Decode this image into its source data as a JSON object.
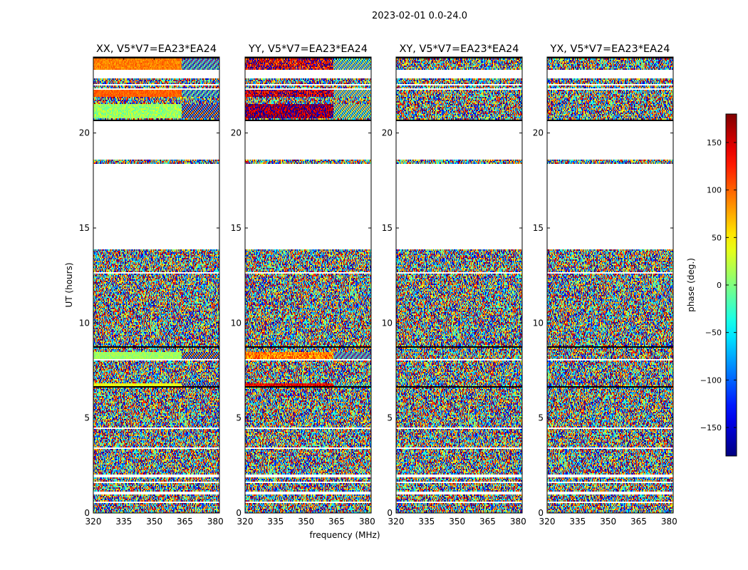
{
  "chart_data": {
    "type": "heatmap",
    "title": "2023-02-01 0.0-24.0",
    "xlabel": "frequency (MHz)",
    "ylabel": "UT (hours)",
    "xlim": [
      320,
      382
    ],
    "ylim": [
      0,
      24
    ],
    "x_ticks": [
      320,
      335,
      350,
      365,
      380
    ],
    "y_ticks": [
      0,
      5,
      10,
      15,
      20
    ],
    "colorbar": {
      "label": "phase (deg.)",
      "range": [
        -180,
        180
      ],
      "ticks": [
        -150,
        -100,
        -50,
        0,
        50,
        100,
        150
      ],
      "tick_labels": [
        "−150",
        "−100",
        "−50",
        "0",
        "50",
        "100",
        "150"
      ],
      "colormap": "jet"
    },
    "panels": [
      {
        "title": "XX, V5*V7=EA23*EA24",
        "polarization": "XX"
      },
      {
        "title": "YY, V5*V7=EA23*EA24",
        "polarization": "YY"
      },
      {
        "title": "XY, V5*V7=EA23*EA24",
        "polarization": "XY"
      },
      {
        "title": "YX, V5*V7=EA23*EA24",
        "polarization": "YX"
      }
    ],
    "blank_hours": [
      [
        0.55,
        0.62
      ],
      [
        0.95,
        1.1
      ],
      [
        1.55,
        1.62
      ],
      [
        1.85,
        2.0
      ],
      [
        3.4,
        3.48
      ],
      [
        4.45,
        4.5
      ],
      [
        8.05,
        8.1
      ],
      [
        11.9,
        11.95
      ],
      [
        12.6,
        12.65
      ],
      [
        13.85,
        18.4
      ],
      [
        18.6,
        20.6
      ],
      [
        22.3,
        22.35
      ],
      [
        22.5,
        22.6
      ],
      [
        22.85,
        23.3
      ]
    ],
    "flagged_hours": [
      [
        6.35,
        6.4
      ],
      [
        6.6,
        6.68
      ],
      [
        8.3,
        8.36
      ],
      [
        8.7,
        8.75
      ],
      [
        20.6,
        20.72
      ],
      [
        23.9,
        24.0
      ],
      [
        18.42,
        18.48
      ]
    ],
    "coherent_bands": [
      {
        "panel": "XX",
        "hours": [
          8.1,
          8.45
        ],
        "phase_deg": 10,
        "drift": 30
      },
      {
        "panel": "XX",
        "hours": [
          6.7,
          6.85
        ],
        "phase_deg": 40,
        "drift": 40
      },
      {
        "panel": "XX",
        "hours": [
          20.75,
          21.5
        ],
        "phase_deg": 10,
        "drift": 60
      },
      {
        "panel": "XX",
        "hours": [
          21.9,
          22.3
        ],
        "phase_deg": 100,
        "drift": 30
      },
      {
        "panel": "XX",
        "hours": [
          23.3,
          23.9
        ],
        "phase_deg": 90,
        "drift": 35
      },
      {
        "panel": "YY",
        "hours": [
          8.1,
          8.45
        ],
        "phase_deg": 90,
        "drift": 80
      },
      {
        "panel": "YY",
        "hours": [
          6.7,
          6.85
        ],
        "phase_deg": 140,
        "drift": 60
      },
      {
        "panel": "YY",
        "hours": [
          20.75,
          21.5
        ],
        "phase_deg": 170,
        "drift": 90
      },
      {
        "panel": "YY",
        "hours": [
          21.9,
          22.3
        ],
        "phase_deg": 160,
        "drift": 120
      },
      {
        "panel": "YY",
        "hours": [
          23.3,
          23.9
        ],
        "phase_deg": 150,
        "drift": 150
      }
    ]
  }
}
